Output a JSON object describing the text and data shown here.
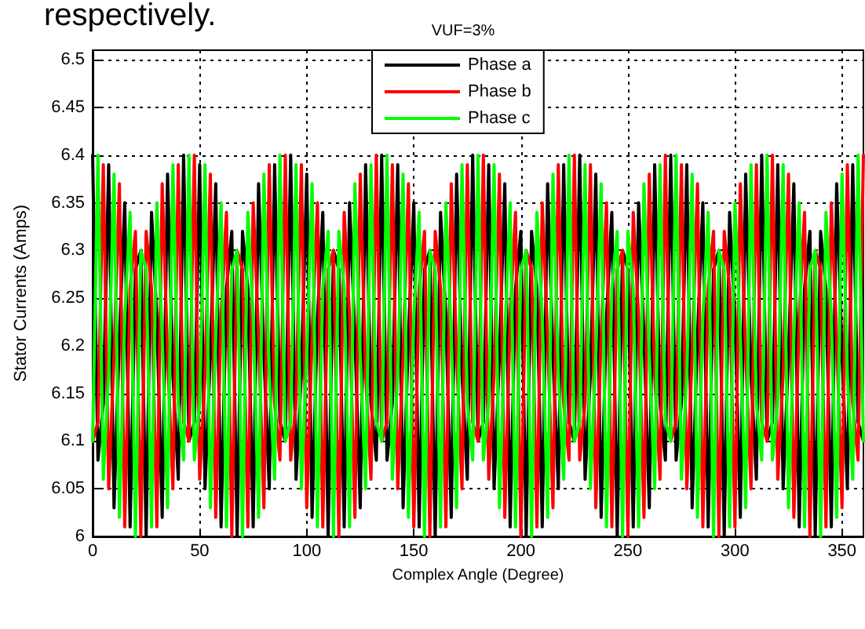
{
  "chart_data": {
    "type": "line",
    "title": "VUF=3%",
    "xlabel": "Complex Angle (Degree)",
    "ylabel": "Stator Currents (Amps)",
    "annotations": [
      "respectively."
    ],
    "xlim": [
      0,
      360
    ],
    "xticks": [
      0,
      50,
      100,
      150,
      200,
      250,
      300,
      350
    ],
    "ylim": [
      6,
      6.51
    ],
    "yticks": [
      6,
      6.05,
      6.1,
      6.15,
      6.2,
      6.25,
      6.3,
      6.35,
      6.4,
      6.45,
      6.5
    ],
    "grid": true,
    "legend": "top",
    "marker": "none",
    "line_style": "solid",
    "x": [
      0,
      2.5,
      5,
      7.5,
      10,
      12.5,
      15,
      17.5,
      20,
      22.5,
      25,
      27.5,
      30,
      32.5,
      35,
      37.5,
      40,
      42.5,
      45,
      47.5,
      50,
      52.5,
      55,
      57.5,
      60,
      62.5,
      65,
      67.5,
      70,
      72.5,
      75,
      77.5,
      80,
      82.5,
      85,
      87.5,
      90,
      92.5,
      95,
      97.5,
      100,
      102.5,
      105,
      107.5,
      110,
      112.5,
      115,
      117.5,
      120,
      122.5,
      125,
      127.5,
      130,
      132.5,
      135,
      137.5,
      140,
      142.5,
      145,
      147.5,
      150,
      152.5,
      155,
      157.5,
      160,
      162.5,
      165,
      167.5,
      170,
      172.5,
      175,
      177.5,
      180,
      182.5,
      185,
      187.5,
      190,
      192.5,
      195,
      197.5,
      200,
      202.5,
      205,
      207.5,
      210,
      212.5,
      215,
      217.5,
      220,
      222.5,
      225,
      227.5,
      230,
      232.5,
      235,
      237.5,
      240,
      242.5,
      245,
      247.5,
      250,
      252.5,
      255,
      257.5,
      260,
      262.5,
      265,
      267.5,
      270,
      272.5,
      275,
      277.5,
      280,
      282.5,
      285,
      287.5,
      290,
      292.5,
      295,
      297.5,
      300,
      302.5,
      305,
      307.5,
      310,
      312.5,
      315,
      317.5,
      320,
      322.5,
      325,
      327.5,
      330,
      332.5,
      335,
      337.5,
      340,
      342.5,
      345,
      347.5,
      350,
      352.5,
      355,
      357.5,
      360
    ],
    "series": [
      {
        "name": "Phase a",
        "color": "#000000",
        "values": [
          6.4,
          6.08,
          6.14,
          6.39,
          6.03,
          6.21,
          6.35,
          6.01,
          6.28,
          6.3,
          6.0,
          6.34,
          6.23,
          6.02,
          6.38,
          6.17,
          6.06,
          6.4,
          6.1,
          6.12,
          6.39,
          6.05,
          6.19,
          6.37,
          6.01,
          6.26,
          6.32,
          6.0,
          6.32,
          6.26,
          6.01,
          6.37,
          6.19,
          6.05,
          6.39,
          6.12,
          6.1,
          6.4,
          6.06,
          6.17,
          6.38,
          6.02,
          6.23,
          6.34,
          6.0,
          6.3,
          6.28,
          6.01,
          6.35,
          6.21,
          6.03,
          6.39,
          6.14,
          6.08,
          6.4,
          6.08,
          6.14,
          6.39,
          6.03,
          6.21,
          6.35,
          6.01,
          6.28,
          6.3,
          6.0,
          6.34,
          6.23,
          6.02,
          6.38,
          6.17,
          6.06,
          6.4,
          6.1,
          6.12,
          6.39,
          6.05,
          6.19,
          6.37,
          6.01,
          6.26,
          6.32,
          6.0,
          6.32,
          6.26,
          6.01,
          6.37,
          6.19,
          6.05,
          6.39,
          6.12,
          6.1,
          6.4,
          6.06,
          6.17,
          6.38,
          6.02,
          6.23,
          6.34,
          6.0,
          6.3,
          6.28,
          6.01,
          6.35,
          6.21,
          6.03,
          6.39,
          6.14,
          6.08,
          6.4,
          6.08,
          6.14,
          6.39,
          6.03,
          6.21,
          6.35,
          6.01,
          6.28,
          6.3,
          6.0,
          6.34,
          6.23,
          6.02,
          6.38,
          6.17,
          6.06,
          6.4,
          6.1,
          6.12,
          6.39,
          6.05,
          6.19,
          6.37,
          6.01,
          6.26,
          6.32,
          6.0,
          6.32,
          6.26,
          6.01,
          6.37,
          6.19,
          6.05,
          6.39,
          6.12,
          6.1
        ]
      },
      {
        "name": "Phase b",
        "color": "#ff0000",
        "values": [
          6.1,
          6.12,
          6.39,
          6.05,
          6.19,
          6.37,
          6.01,
          6.26,
          6.32,
          6.0,
          6.32,
          6.26,
          6.01,
          6.37,
          6.19,
          6.05,
          6.39,
          6.12,
          6.1,
          6.4,
          6.06,
          6.17,
          6.38,
          6.02,
          6.23,
          6.34,
          6.0,
          6.3,
          6.28,
          6.01,
          6.35,
          6.21,
          6.03,
          6.39,
          6.14,
          6.08,
          6.4,
          6.08,
          6.14,
          6.39,
          6.03,
          6.21,
          6.35,
          6.01,
          6.28,
          6.3,
          6.0,
          6.34,
          6.23,
          6.02,
          6.38,
          6.17,
          6.06,
          6.4,
          6.1,
          6.12,
          6.39,
          6.05,
          6.19,
          6.37,
          6.01,
          6.26,
          6.32,
          6.0,
          6.32,
          6.26,
          6.01,
          6.37,
          6.19,
          6.05,
          6.39,
          6.12,
          6.1,
          6.4,
          6.06,
          6.17,
          6.38,
          6.02,
          6.23,
          6.34,
          6.0,
          6.3,
          6.28,
          6.01,
          6.35,
          6.21,
          6.03,
          6.39,
          6.14,
          6.08,
          6.4,
          6.08,
          6.14,
          6.39,
          6.03,
          6.21,
          6.35,
          6.01,
          6.28,
          6.3,
          6.0,
          6.34,
          6.23,
          6.02,
          6.38,
          6.17,
          6.06,
          6.4,
          6.1,
          6.12,
          6.39,
          6.05,
          6.19,
          6.37,
          6.01,
          6.26,
          6.32,
          6.0,
          6.32,
          6.26,
          6.01,
          6.37,
          6.19,
          6.05,
          6.39,
          6.12,
          6.1,
          6.4,
          6.06,
          6.17,
          6.38,
          6.02,
          6.23,
          6.34,
          6.0,
          6.3,
          6.28,
          6.01,
          6.35,
          6.21,
          6.03,
          6.39,
          6.14,
          6.08,
          6.4
        ]
      },
      {
        "name": "Phase c",
        "color": "#00ff00",
        "values": [
          6.1,
          6.4,
          6.06,
          6.17,
          6.38,
          6.02,
          6.23,
          6.34,
          6.0,
          6.3,
          6.28,
          6.01,
          6.35,
          6.21,
          6.03,
          6.39,
          6.14,
          6.08,
          6.4,
          6.08,
          6.14,
          6.39,
          6.03,
          6.21,
          6.35,
          6.01,
          6.28,
          6.3,
          6.0,
          6.34,
          6.23,
          6.02,
          6.38,
          6.17,
          6.06,
          6.4,
          6.1,
          6.12,
          6.39,
          6.05,
          6.19,
          6.37,
          6.01,
          6.26,
          6.32,
          6.0,
          6.32,
          6.26,
          6.01,
          6.37,
          6.19,
          6.05,
          6.39,
          6.12,
          6.1,
          6.4,
          6.06,
          6.17,
          6.38,
          6.02,
          6.23,
          6.34,
          6.0,
          6.3,
          6.28,
          6.01,
          6.35,
          6.21,
          6.03,
          6.39,
          6.14,
          6.08,
          6.4,
          6.08,
          6.14,
          6.39,
          6.03,
          6.21,
          6.35,
          6.01,
          6.28,
          6.3,
          6.0,
          6.34,
          6.23,
          6.02,
          6.38,
          6.17,
          6.06,
          6.4,
          6.1,
          6.12,
          6.39,
          6.05,
          6.19,
          6.37,
          6.01,
          6.26,
          6.32,
          6.0,
          6.32,
          6.26,
          6.01,
          6.37,
          6.19,
          6.05,
          6.39,
          6.12,
          6.1,
          6.4,
          6.06,
          6.17,
          6.38,
          6.02,
          6.23,
          6.34,
          6.0,
          6.3,
          6.28,
          6.01,
          6.35,
          6.21,
          6.03,
          6.39,
          6.14,
          6.08,
          6.4,
          6.08,
          6.14,
          6.39,
          6.03,
          6.21,
          6.35,
          6.01,
          6.28,
          6.3,
          6.0,
          6.34,
          6.23,
          6.02,
          6.38,
          6.17,
          6.06,
          6.4,
          6.1
        ]
      }
    ]
  }
}
